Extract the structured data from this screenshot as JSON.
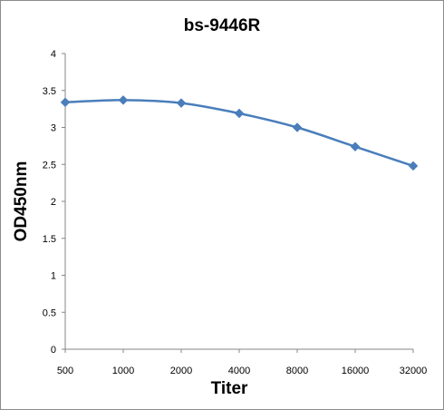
{
  "chart_data": {
    "type": "line",
    "title": "bs-9446R",
    "xlabel": "Titer",
    "ylabel": "OD450nm",
    "categories": [
      "500",
      "1000",
      "2000",
      "4000",
      "8000",
      "16000",
      "32000"
    ],
    "series": [
      {
        "values": [
          3.34,
          3.37,
          3.33,
          3.19,
          3.0,
          2.74,
          2.48
        ],
        "color": "#4a7ebb",
        "marker": "diamond"
      }
    ],
    "ylim": [
      0,
      4
    ],
    "yticks": [
      "0",
      "0.5",
      "1",
      "1.5",
      "2",
      "2.5",
      "3",
      "3.5",
      "4"
    ],
    "grid": false,
    "legend": "none"
  }
}
